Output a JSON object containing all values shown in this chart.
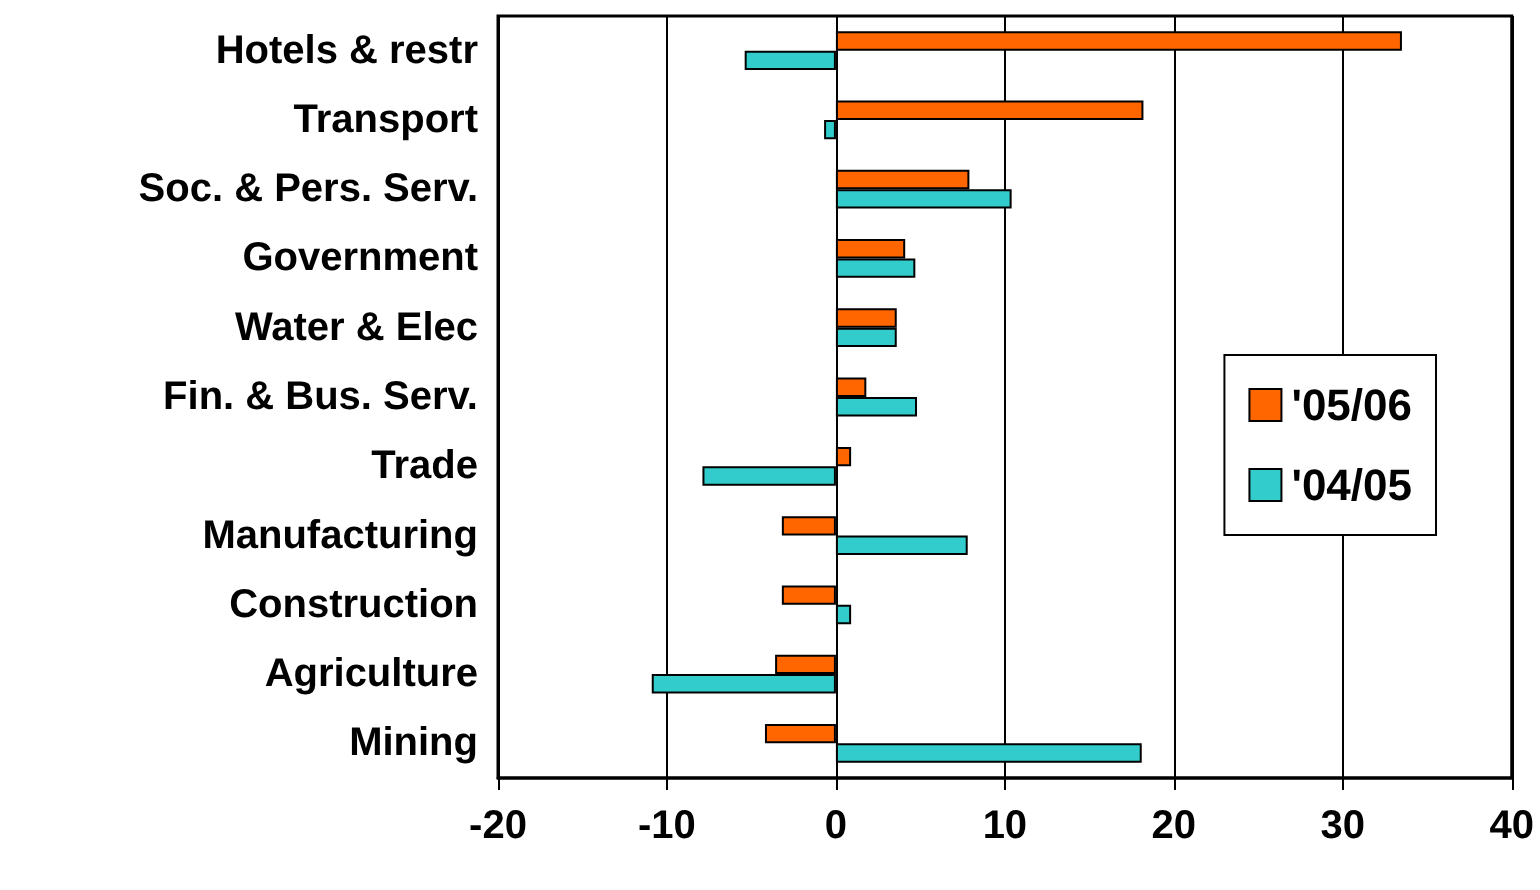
{
  "chart_data": {
    "type": "bar",
    "orientation": "horizontal",
    "categories": [
      "Hotels & restr",
      "Transport",
      "Soc. & Pers. Serv.",
      "Government",
      "Water & Elec",
      "Fin. & Bus. Serv.",
      "Trade",
      "Manufacturing",
      "Construction",
      "Agriculture",
      "Mining"
    ],
    "series": [
      {
        "name": "'05/06",
        "color": "#ff6600",
        "values": [
          33.5,
          18.2,
          7.9,
          4.1,
          3.6,
          1.8,
          0.9,
          -3.2,
          -3.2,
          -3.6,
          -4.2
        ]
      },
      {
        "name": "'04/05",
        "color": "#33cccc",
        "values": [
          -5.4,
          -0.7,
          10.4,
          4.7,
          3.6,
          4.8,
          -7.9,
          7.8,
          0.9,
          -10.9,
          18.1
        ]
      }
    ],
    "xlim": [
      -20,
      40
    ],
    "xticks": [
      -20,
      -10,
      0,
      10,
      20,
      30,
      40
    ],
    "grid": "x",
    "legend": "right"
  }
}
